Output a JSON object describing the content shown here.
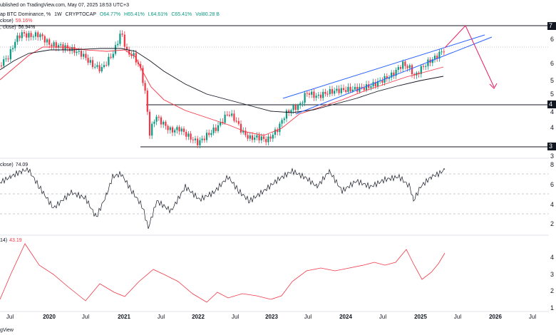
{
  "header": {
    "published": "ublished on TradingView.com, May 07, 2025 18:53 UTC+3",
    "symbol": "ap BTC Dominance, %",
    "interval": "1W",
    "exchange": "CRYPTOCAP",
    "o": "O64.77%",
    "h": "H65.41%",
    "l": "L64.61%",
    "c": "C65.41%",
    "vol": "Vol80.28 B",
    "ma1_label": "close)",
    "ma1_value": "59.16%",
    "ma2_label": ", close)",
    "ma2_value": "56.94%",
    "rsi_label": "close)",
    "rsi_value": "74.09",
    "adx_label": "14)",
    "adx_value": "43.19",
    "footer": "gView"
  },
  "colors": {
    "up_candle": "#089981",
    "down_candle": "#f23645",
    "ma_fast": "#f23645",
    "ma_slow": "#131722",
    "channel": "#2962ff",
    "projection": "#e91e63",
    "adx": "#f23645"
  },
  "price_axis_labels": [
    "6",
    "6",
    "5",
    "5",
    "4",
    "4",
    "3"
  ],
  "price_level_labels": [
    "7",
    "4",
    "3"
  ],
  "rsi_axis_labels": [
    "8",
    "6",
    "4",
    "2"
  ],
  "adx_axis_labels": [
    "4",
    "3",
    "2",
    "1"
  ],
  "x_labels": [
    "Jul",
    "2020",
    "Jul",
    "2021",
    "Jul",
    "2022",
    "Jul",
    "2023",
    "Jul",
    "2024",
    "Jul",
    "2025",
    "Jul",
    "2026",
    "Jul"
  ],
  "chart_data": {
    "type": "line",
    "title": "BTC Dominance, %",
    "x": [
      "2019-06",
      "2019-09",
      "2019-12",
      "2020-03",
      "2020-06",
      "2020-09",
      "2020-12",
      "2021-01",
      "2021-03",
      "2021-05",
      "2021-06",
      "2021-09",
      "2021-12",
      "2022-03",
      "2022-06",
      "2022-09",
      "2022-12",
      "2023-03",
      "2023-06",
      "2023-09",
      "2023-12",
      "2024-03",
      "2024-06",
      "2024-09",
      "2024-11",
      "2024-12",
      "2025-02",
      "2025-04",
      "2025-05"
    ],
    "series": [
      {
        "name": "BTC Dominance",
        "values": [
          66,
          68,
          68,
          65,
          65,
          58,
          66,
          69,
          61,
          43,
          45,
          42,
          40,
          41,
          46,
          40,
          40,
          46,
          50,
          49,
          52,
          50,
          56,
          58,
          60,
          56,
          60,
          62,
          65.4
        ]
      },
      {
        "name": "MA fast",
        "values": [
          60,
          64,
          66,
          66,
          65,
          63,
          62,
          62,
          60,
          54,
          50,
          46,
          44,
          43,
          42,
          41,
          41,
          42,
          45,
          47,
          49,
          51,
          52,
          54,
          55,
          56,
          57,
          58,
          59.2
        ]
      },
      {
        "name": "MA slow",
        "values": [
          55,
          60,
          63,
          64,
          64,
          64,
          63,
          63,
          62,
          60,
          57,
          52,
          49,
          47,
          46,
          45,
          44,
          44,
          44,
          45,
          46,
          48,
          49,
          50,
          51,
          52,
          53,
          55,
          56.9
        ]
      }
    ],
    "rsi": {
      "name": "RSI",
      "value": 74.09
    },
    "adx": {
      "name": "ADX",
      "value": 43.19
    }
  }
}
